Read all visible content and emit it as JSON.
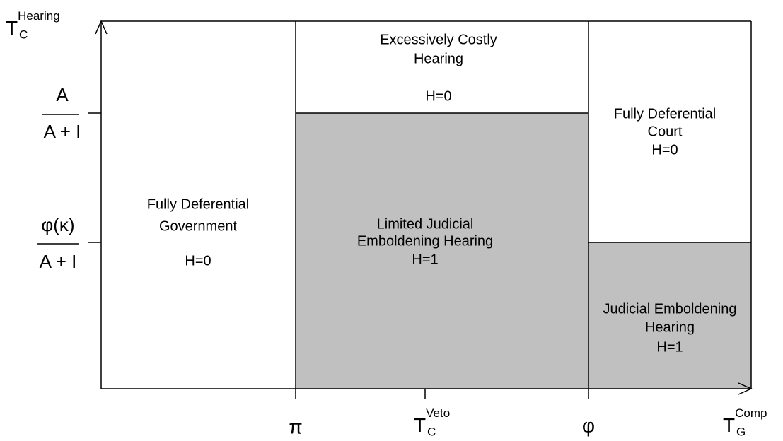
{
  "y_axis": {
    "label": {
      "base": "T",
      "sub": "C",
      "sup": "Hearing"
    },
    "ticks": [
      {
        "numerator": "A",
        "denominator": "A + I"
      },
      {
        "numerator": "φ(κ)",
        "denominator": "A + I"
      }
    ]
  },
  "x_axis": {
    "label": {
      "base": "T",
      "sub": "G",
      "sup": "Comp"
    },
    "ticks": [
      {
        "label": "π"
      },
      {
        "label": {
          "base": "T",
          "sub": "C",
          "sup": "Veto"
        }
      },
      {
        "label": "φ"
      }
    ]
  },
  "regions": [
    {
      "lines": [
        "Fully Deferential",
        "Government"
      ],
      "outcome": "H=0"
    },
    {
      "lines": [
        "Excessively Costly",
        "Hearing"
      ],
      "outcome": "H=0"
    },
    {
      "lines": [
        "Limited Judicial",
        "Emboldening Hearing"
      ],
      "outcome": "H=1"
    },
    {
      "lines": [
        "Fully Deferential",
        "Court"
      ],
      "outcome": "H=0"
    },
    {
      "lines": [
        "Judicial Emboldening",
        "Hearing"
      ],
      "outcome": "H=1"
    }
  ]
}
